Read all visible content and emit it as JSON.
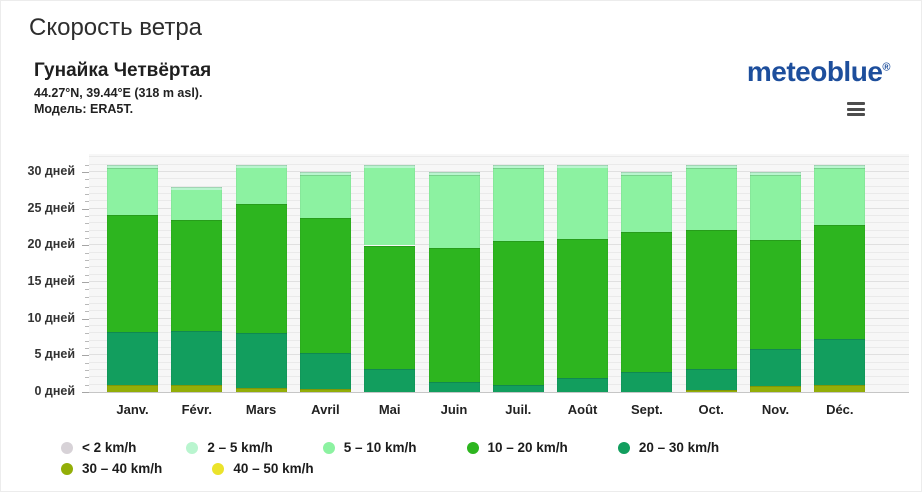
{
  "page": {
    "title": "Скорость ветра",
    "location": "Гунайка Четвёртая",
    "coords": "44.27°N, 39.44°E (318 m asl).",
    "model": "Модель: ERA5T.",
    "brand": "meteoblue",
    "brand_mark": "®",
    "brand_color": "#1d4e9c"
  },
  "chart_data": {
    "type": "bar",
    "stacked": true,
    "title": "Скорость ветра",
    "xlabel": "",
    "ylabel": "дней",
    "ylim": [
      0,
      32.5
    ],
    "grid": "horizontal, minor every 1 day, labels every 5 days",
    "legend_position": "bottom",
    "yticks": [
      0,
      5,
      10,
      15,
      20,
      25,
      30
    ],
    "ytick_labels": [
      "0 дней",
      "5 дней",
      "10 дней",
      "15 дней",
      "20 дней",
      "25 дней",
      "30 дней"
    ],
    "categories": [
      "Janv.",
      "Févr.",
      "Mars",
      "Avril",
      "Mai",
      "Juin",
      "Juil.",
      "Août",
      "Sept.",
      "Oct.",
      "Nov.",
      "Déc."
    ],
    "month_totals": [
      31,
      28,
      31,
      30,
      31,
      30,
      31,
      31,
      30,
      31,
      30,
      31
    ],
    "stack_order_bottom_to_top": [
      "40 – 50 km/h",
      "30 – 40 km/h",
      "20 – 30 km/h",
      "10 – 20 km/h",
      "5 – 10 km/h",
      "2 – 5 km/h",
      "< 2 km/h"
    ],
    "series": [
      {
        "name": "< 2 km/h",
        "color": "#d7d2d7",
        "values": [
          0,
          0,
          0,
          0,
          0,
          0,
          0,
          0,
          0,
          0,
          0,
          0
        ]
      },
      {
        "name": "2 – 5 km/h",
        "color": "#b9f5cf",
        "values": [
          0.4,
          0.4,
          0.4,
          0.4,
          0.4,
          0.4,
          0.4,
          0.4,
          0.4,
          0.4,
          0.4,
          0.4
        ]
      },
      {
        "name": "5 – 10 km/h",
        "color": "#8cf2a1",
        "values": [
          6.4,
          4.2,
          5.0,
          5.9,
          10.6,
          10.0,
          10.0,
          9.8,
          7.8,
          8.5,
          8.9,
          7.8
        ]
      },
      {
        "name": "10 – 20 km/h",
        "color": "#2db51f",
        "values": [
          16.0,
          15.1,
          17.6,
          18.4,
          16.8,
          18.3,
          19.6,
          18.9,
          19.1,
          19.0,
          14.8,
          15.6
        ]
      },
      {
        "name": "20 – 30 km/h",
        "color": "#129e5e",
        "values": [
          7.2,
          7.3,
          7.5,
          4.9,
          3.2,
          1.3,
          1.0,
          1.9,
          2.7,
          2.8,
          5.1,
          6.3
        ]
      },
      {
        "name": "30 – 40 km/h",
        "color": "#93ae08",
        "values": [
          1.0,
          1.0,
          0.5,
          0.4,
          0,
          0,
          0,
          0,
          0,
          0.3,
          0.8,
          0.9
        ]
      },
      {
        "name": "40 – 50 km/h",
        "color": "#ebe32b",
        "values": [
          0,
          0,
          0,
          0,
          0,
          0,
          0,
          0,
          0,
          0,
          0,
          0
        ]
      }
    ]
  }
}
